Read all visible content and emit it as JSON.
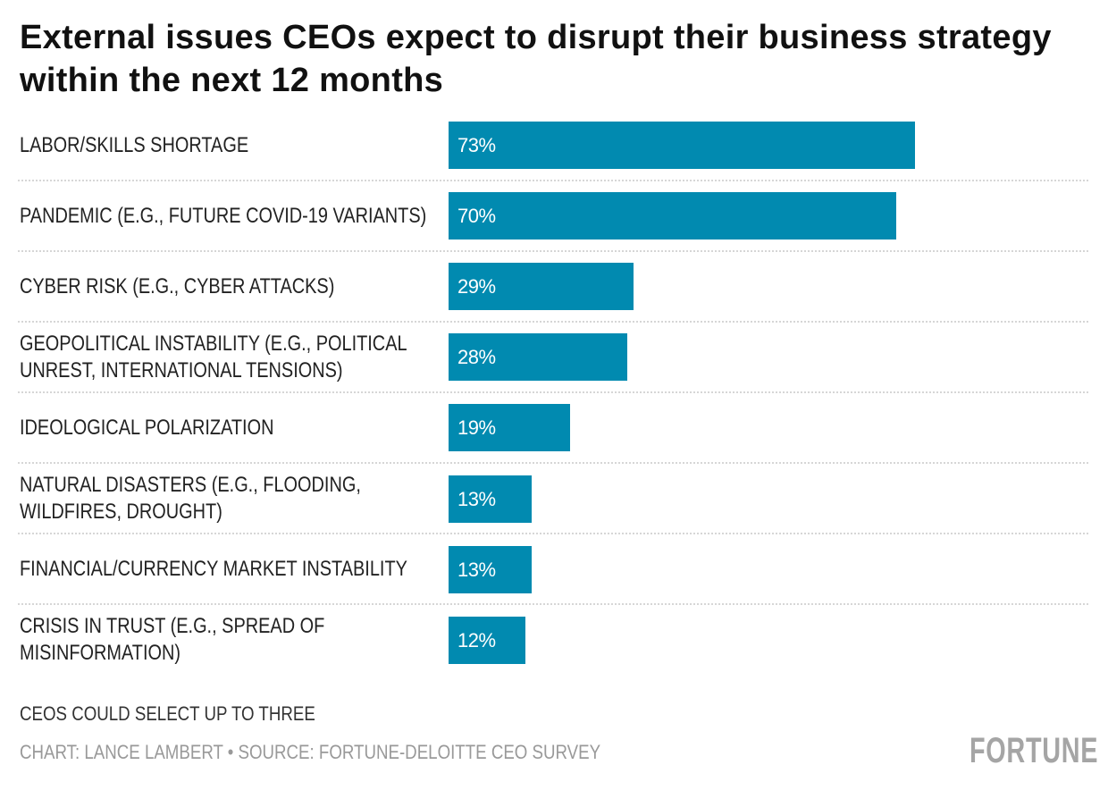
{
  "chart_data": {
    "type": "bar",
    "orientation": "horizontal",
    "title": "External issues CEOs expect to disrupt their business strategy within the next 12 months",
    "categories": [
      "LABOR/SKILLS SHORTAGE",
      "PANDEMIC (E.G., FUTURE COVID-19 VARIANTS)",
      "CYBER RISK (E.G., CYBER ATTACKS)",
      "GEOPOLITICAL INSTABILITY (E.G., POLITICAL UNREST, INTERNATIONAL TENSIONS)",
      "IDEOLOGICAL POLARIZATION",
      "NATURAL DISASTERS (E.G., FLOODING, WILDFIRES, DROUGHT)",
      "FINANCIAL/CURRENCY MARKET INSTABILITY",
      "CRISIS IN TRUST (E.G., SPREAD OF MISINFORMATION)"
    ],
    "values": [
      73,
      70,
      29,
      28,
      19,
      13,
      13,
      12
    ],
    "value_labels": [
      "73%",
      "70%",
      "29%",
      "28%",
      "19%",
      "13%",
      "13%",
      "12%"
    ],
    "xlim": [
      0,
      100
    ],
    "grid": false,
    "bar_color": "#018ab0"
  },
  "note": "CEOS COULD SELECT UP TO THREE",
  "credit": "CHART: LANCE LAMBERT • SOURCE: FORTUNE-DELOITTE CEO SURVEY",
  "logo": "FORTUNE"
}
